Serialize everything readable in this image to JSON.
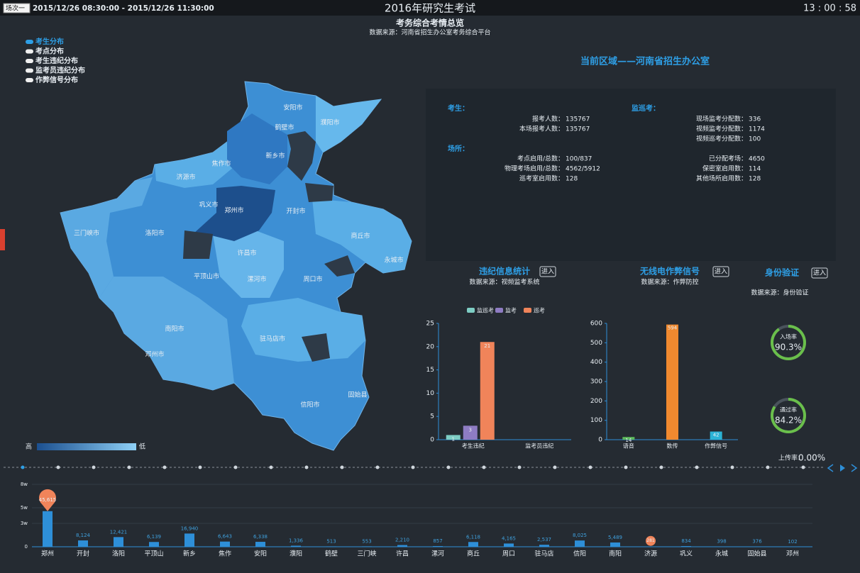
{
  "header": {
    "session": "场次一",
    "time_range": "2015/12/26 08:30:00 - 2015/12/26 11:30:00",
    "title": "2016年研究生考试",
    "clock": "13 : 00 : 58"
  },
  "overview": {
    "title": "考务综合考情总览",
    "source": "数据来源：河南省招生办公室考务综合平台"
  },
  "map_menu": [
    "考生分布",
    "考点分布",
    "考生违纪分布",
    "监考员违纪分布",
    "作弊信号分布"
  ],
  "map": {
    "regions": [
      "安阳市",
      "鹤壁市",
      "濮阳市",
      "新乡市",
      "焦作市",
      "济源市",
      "巩义市",
      "郑州市",
      "开封市",
      "商丘市",
      "永城市",
      "三门峡市",
      "洛阳市",
      "许昌市",
      "平顶山市",
      "漯河市",
      "周口市",
      "南阳市",
      "驻马店市",
      "邓州市",
      "信阳市",
      "固始县"
    ],
    "legend_high": "高",
    "legend_low": "低"
  },
  "region_title": "当前区域——河南省招生办公室",
  "stats": {
    "examinee_heading": "考生：",
    "examinee": [
      {
        "label": "报考人数：",
        "value": "135767"
      },
      {
        "label": "本场报考人数：",
        "value": "135767"
      }
    ],
    "venue_heading": "场所：",
    "venue": [
      {
        "label": "考点启用/总数：",
        "value": "100/837"
      },
      {
        "label": "物理考场启用/总数：",
        "value": "4562/5912"
      },
      {
        "label": "巡考室启用数：",
        "value": "128"
      }
    ],
    "proctor_heading": "监巡考：",
    "proctor": [
      {
        "label": "现场监考分配数：",
        "value": "336"
      },
      {
        "label": "视频监考分配数：",
        "value": "1174"
      },
      {
        "label": "视频巡考分配数：",
        "value": "100"
      },
      {
        "label": "已分配考场：",
        "value": "4650"
      },
      {
        "label": "保密室启用数：",
        "value": "114"
      },
      {
        "label": "其他场所启用数：",
        "value": "128"
      }
    ]
  },
  "panels": [
    {
      "title": "违纪信息统计",
      "button": "进入",
      "source": "数据来源：视频监考系统"
    },
    {
      "title": "无线电作弊信号",
      "button": "进入",
      "source": "数据来源：作弊防控"
    },
    {
      "title": "身份验证",
      "button": "进入",
      "source": "数据来源：身份验证"
    }
  ],
  "violation_chart": {
    "type": "bar",
    "categories": [
      "考生违纪",
      "监考员违纪"
    ],
    "series": [
      {
        "name": "监巡考",
        "color": "#7ecdc4",
        "values": [
          1,
          0
        ]
      },
      {
        "name": "监考",
        "color": "#8e7cc3",
        "values": [
          3,
          0
        ]
      },
      {
        "name": "巡考",
        "color": "#f0845a",
        "values": [
          21,
          0
        ]
      }
    ],
    "ylim": [
      0,
      25
    ],
    "yticks": [
      0,
      5,
      10,
      15,
      20,
      25
    ]
  },
  "signal_chart": {
    "type": "bar",
    "categories": [
      "语音",
      "数传",
      "作弊信号"
    ],
    "values": [
      14,
      594,
      42
    ],
    "colors": [
      "#5cb85c",
      "#f0892f",
      "#2bb3d6"
    ],
    "ylim": [
      0,
      600
    ],
    "yticks": [
      0,
      100,
      200,
      300,
      400,
      500,
      600
    ]
  },
  "gauges": [
    {
      "label": "入场率",
      "value": 90.3,
      "value_label": "90.3%"
    },
    {
      "label": "通过率",
      "value": 84.2,
      "value_label": "84.2%"
    }
  ],
  "upload_rate": {
    "label": "上传率：",
    "value": "0.00%"
  },
  "city_chart": {
    "type": "bar",
    "color": "#2e8fd8",
    "categories": [
      "郑州",
      "开封",
      "洛阳",
      "平顶山",
      "新乡",
      "焦作",
      "安阳",
      "濮阳",
      "鹤壁",
      "三门峡",
      "许昌",
      "漯河",
      "商丘",
      "周口",
      "驻马店",
      "信阳",
      "南阳",
      "济源",
      "巩义",
      "永城",
      "固始县",
      "邓州"
    ],
    "values": [
      45615,
      8124,
      12421,
      6139,
      16940,
      6643,
      6338,
      1336,
      513,
      553,
      2210,
      857,
      6118,
      4165,
      2537,
      8025,
      5489,
      281,
      834,
      398,
      376,
      102
    ],
    "value_labels": [
      "45,615",
      "8,124",
      "12,421",
      "6,139",
      "16,940",
      "6,643",
      "6,338",
      "1,336",
      "513",
      "553",
      "2,210",
      "857",
      "6,118",
      "4,165",
      "2,537",
      "8,025",
      "5,489",
      "281",
      "834",
      "398",
      "376",
      "102"
    ],
    "ylim": [
      0,
      80000
    ],
    "yticks": [
      0,
      {
        "value": 30000,
        "label": "3w"
      },
      {
        "value": 50000,
        "label": "5w"
      },
      {
        "value": 80000,
        "label": "8w"
      }
    ]
  }
}
